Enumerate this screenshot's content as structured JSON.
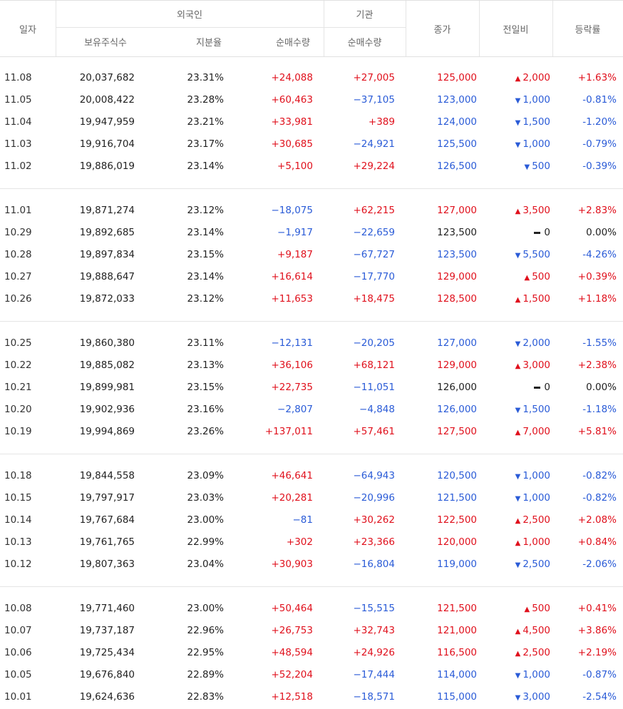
{
  "header": {
    "date": "일자",
    "foreign": "외국인",
    "institution": "기관",
    "holdings": "보유주식수",
    "ratio": "지분율",
    "foreign_net": "순매수량",
    "inst_net": "순매수량",
    "close": "종가",
    "diff": "전일비",
    "rate": "등락률"
  },
  "rows": [
    {
      "date": "11.08",
      "holdings": "20,037,682",
      "ratio": "23.31%",
      "fnet": "+24,088",
      "inet": "+27,005",
      "close": "125,000",
      "dir": "up",
      "diff": "2,000",
      "rate": "+1.63%"
    },
    {
      "date": "11.05",
      "holdings": "20,008,422",
      "ratio": "23.28%",
      "fnet": "+60,463",
      "inet": "−37,105",
      "close": "123,000",
      "dir": "down",
      "diff": "1,000",
      "rate": "-0.81%"
    },
    {
      "date": "11.04",
      "holdings": "19,947,959",
      "ratio": "23.21%",
      "fnet": "+33,981",
      "inet": "+389",
      "close": "124,000",
      "dir": "down",
      "diff": "1,500",
      "rate": "-1.20%"
    },
    {
      "date": "11.03",
      "holdings": "19,916,704",
      "ratio": "23.17%",
      "fnet": "+30,685",
      "inet": "−24,921",
      "close": "125,500",
      "dir": "down",
      "diff": "1,000",
      "rate": "-0.79%"
    },
    {
      "date": "11.02",
      "holdings": "19,886,019",
      "ratio": "23.14%",
      "fnet": "+5,100",
      "inet": "+29,224",
      "close": "126,500",
      "dir": "down",
      "diff": "500",
      "rate": "-0.39%"
    },
    {
      "date": "11.01",
      "holdings": "19,871,274",
      "ratio": "23.12%",
      "fnet": "−18,075",
      "inet": "+62,215",
      "close": "127,000",
      "dir": "up",
      "diff": "3,500",
      "rate": "+2.83%"
    },
    {
      "date": "10.29",
      "holdings": "19,892,685",
      "ratio": "23.14%",
      "fnet": "−1,917",
      "inet": "−22,659",
      "close": "123,500",
      "dir": "flat",
      "diff": "0",
      "rate": "0.00%"
    },
    {
      "date": "10.28",
      "holdings": "19,897,834",
      "ratio": "23.15%",
      "fnet": "+9,187",
      "inet": "−67,727",
      "close": "123,500",
      "dir": "down",
      "diff": "5,500",
      "rate": "-4.26%"
    },
    {
      "date": "10.27",
      "holdings": "19,888,647",
      "ratio": "23.14%",
      "fnet": "+16,614",
      "inet": "−17,770",
      "close": "129,000",
      "dir": "up",
      "diff": "500",
      "rate": "+0.39%"
    },
    {
      "date": "10.26",
      "holdings": "19,872,033",
      "ratio": "23.12%",
      "fnet": "+11,653",
      "inet": "+18,475",
      "close": "128,500",
      "dir": "up",
      "diff": "1,500",
      "rate": "+1.18%"
    },
    {
      "date": "10.25",
      "holdings": "19,860,380",
      "ratio": "23.11%",
      "fnet": "−12,131",
      "inet": "−20,205",
      "close": "127,000",
      "dir": "down",
      "diff": "2,000",
      "rate": "-1.55%"
    },
    {
      "date": "10.22",
      "holdings": "19,885,082",
      "ratio": "23.13%",
      "fnet": "+36,106",
      "inet": "+68,121",
      "close": "129,000",
      "dir": "up",
      "diff": "3,000",
      "rate": "+2.38%"
    },
    {
      "date": "10.21",
      "holdings": "19,899,981",
      "ratio": "23.15%",
      "fnet": "+22,735",
      "inet": "−11,051",
      "close": "126,000",
      "dir": "flat",
      "diff": "0",
      "rate": "0.00%"
    },
    {
      "date": "10.20",
      "holdings": "19,902,936",
      "ratio": "23.16%",
      "fnet": "−2,807",
      "inet": "−4,848",
      "close": "126,000",
      "dir": "down",
      "diff": "1,500",
      "rate": "-1.18%"
    },
    {
      "date": "10.19",
      "holdings": "19,994,869",
      "ratio": "23.26%",
      "fnet": "+137,011",
      "inet": "+57,461",
      "close": "127,500",
      "dir": "up",
      "diff": "7,000",
      "rate": "+5.81%"
    },
    {
      "date": "10.18",
      "holdings": "19,844,558",
      "ratio": "23.09%",
      "fnet": "+46,641",
      "inet": "−64,943",
      "close": "120,500",
      "dir": "down",
      "diff": "1,000",
      "rate": "-0.82%"
    },
    {
      "date": "10.15",
      "holdings": "19,797,917",
      "ratio": "23.03%",
      "fnet": "+20,281",
      "inet": "−20,996",
      "close": "121,500",
      "dir": "down",
      "diff": "1,000",
      "rate": "-0.82%"
    },
    {
      "date": "10.14",
      "holdings": "19,767,684",
      "ratio": "23.00%",
      "fnet": "−81",
      "inet": "+30,262",
      "close": "122,500",
      "dir": "up",
      "diff": "2,500",
      "rate": "+2.08%"
    },
    {
      "date": "10.13",
      "holdings": "19,761,765",
      "ratio": "22.99%",
      "fnet": "+302",
      "inet": "+23,366",
      "close": "120,000",
      "dir": "up",
      "diff": "1,000",
      "rate": "+0.84%"
    },
    {
      "date": "10.12",
      "holdings": "19,807,363",
      "ratio": "23.04%",
      "fnet": "+30,903",
      "inet": "−16,804",
      "close": "119,000",
      "dir": "down",
      "diff": "2,500",
      "rate": "-2.06%"
    },
    {
      "date": "10.08",
      "holdings": "19,771,460",
      "ratio": "23.00%",
      "fnet": "+50,464",
      "inet": "−15,515",
      "close": "121,500",
      "dir": "up",
      "diff": "500",
      "rate": "+0.41%"
    },
    {
      "date": "10.07",
      "holdings": "19,737,187",
      "ratio": "22.96%",
      "fnet": "+26,753",
      "inet": "+32,743",
      "close": "121,000",
      "dir": "up",
      "diff": "4,500",
      "rate": "+3.86%"
    },
    {
      "date": "10.06",
      "holdings": "19,725,434",
      "ratio": "22.95%",
      "fnet": "+48,594",
      "inet": "+24,926",
      "close": "116,500",
      "dir": "up",
      "diff": "2,500",
      "rate": "+2.19%"
    },
    {
      "date": "10.05",
      "holdings": "19,676,840",
      "ratio": "22.89%",
      "fnet": "+52,204",
      "inet": "−17,444",
      "close": "114,000",
      "dir": "down",
      "diff": "1,000",
      "rate": "-0.87%"
    },
    {
      "date": "10.01",
      "holdings": "19,624,636",
      "ratio": "22.83%",
      "fnet": "+12,518",
      "inet": "−18,571",
      "close": "115,000",
      "dir": "down",
      "diff": "3,000",
      "rate": "-2.54%"
    }
  ],
  "colors": {
    "up": "#e0101c",
    "down": "#2a5bd7",
    "flat": "#222222",
    "border": "#e5e5e5"
  }
}
